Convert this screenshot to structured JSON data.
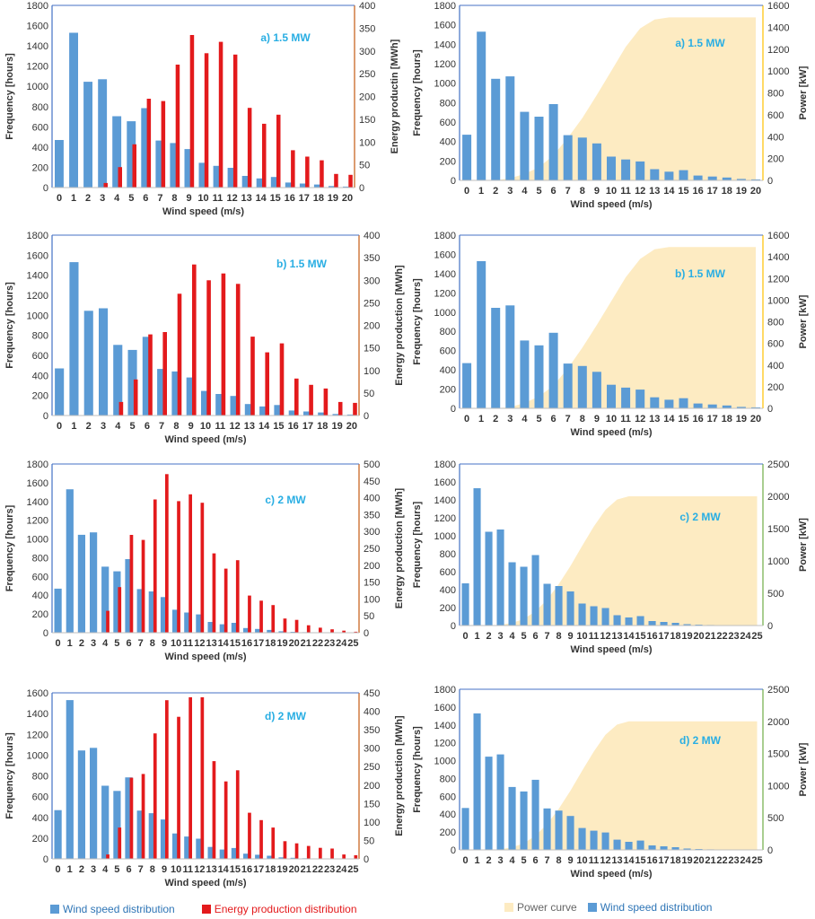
{
  "colors": {
    "wind": "#5b9bd5",
    "energy": "#e31a1c",
    "power": "#fdebc2",
    "axis_left": "#4472c4",
    "axis_energy": "#c55a11",
    "axis_power": "#ffc000",
    "axis_power_green": "#70ad47",
    "annotation": "#29aee3",
    "legend_energy_text": "#e31a1c",
    "legend_wind_text": "#2e75b6"
  },
  "legend_left": {
    "wind": "Wind speed distribution",
    "energy": "Energy production distribution"
  },
  "legend_right": {
    "power": "Power curve",
    "wind": "Wind speed distribution"
  },
  "chart_data": [
    {
      "type": "bar",
      "annotation": "a) 1.5 MW",
      "xlabel": "Wind speed (m/s)",
      "ylabel": "Frequency [hours]",
      "y2label": "Energy productin [MWh]",
      "x": [
        "0",
        "1",
        "2",
        "3",
        "4",
        "5",
        "6",
        "7",
        "8",
        "9",
        "10",
        "11",
        "12",
        "13",
        "14",
        "15",
        "16",
        "17",
        "18",
        "19",
        "20"
      ],
      "ylim": [
        0,
        1800
      ],
      "yticks": [
        0,
        200,
        400,
        600,
        800,
        1000,
        1200,
        1400,
        1600,
        1800
      ],
      "y2lim": [
        0,
        400
      ],
      "y2ticks": [
        0,
        50,
        100,
        150,
        200,
        250,
        300,
        350,
        400
      ],
      "series": [
        {
          "name": "Wind speed distribution",
          "axis": "left",
          "values": [
            470,
            1530,
            1045,
            1070,
            705,
            655,
            785,
            465,
            440,
            380,
            245,
            215,
            195,
            115,
            90,
            105,
            50,
            40,
            30,
            15,
            10
          ]
        },
        {
          "name": "Energy production distribution",
          "axis": "right",
          "values": [
            0,
            0,
            0,
            10,
            45,
            95,
            195,
            190,
            270,
            335,
            295,
            320,
            292,
            175,
            140,
            160,
            82,
            68,
            60,
            30,
            28
          ]
        }
      ]
    },
    {
      "type": "bar",
      "annotation": "a) 1.5 MW",
      "xlabel": "Wind speed (m/s)",
      "ylabel": "Frequency [hours]",
      "y2label": "Power [kW]",
      "x": [
        "0",
        "1",
        "2",
        "3",
        "4",
        "5",
        "6",
        "7",
        "8",
        "9",
        "10",
        "11",
        "12",
        "13",
        "14",
        "15",
        "16",
        "17",
        "18",
        "19",
        "20"
      ],
      "ylim": [
        0,
        1800
      ],
      "yticks": [
        0,
        200,
        400,
        600,
        800,
        1000,
        1200,
        1400,
        1600,
        1800
      ],
      "y2lim": [
        0,
        1600
      ],
      "y2ticks": [
        0,
        200,
        400,
        600,
        800,
        1000,
        1200,
        1400,
        1600
      ],
      "series": [
        {
          "name": "Wind speed distribution",
          "axis": "left",
          "values": [
            470,
            1530,
            1045,
            1070,
            705,
            655,
            785,
            465,
            440,
            380,
            245,
            215,
            195,
            115,
            90,
            105,
            50,
            40,
            30,
            15,
            10
          ]
        },
        {
          "name": "Power curve",
          "axis": "right",
          "area": true,
          "values": [
            0,
            0,
            0,
            20,
            60,
            120,
            230,
            390,
            570,
            780,
            1000,
            1220,
            1390,
            1470,
            1490,
            1490,
            1490,
            1490,
            1490,
            1490,
            1490
          ]
        }
      ]
    },
    {
      "type": "bar",
      "annotation": "b) 1.5 MW",
      "xlabel": "Wind speed (m/s)",
      "ylabel": "Frequency [hours]",
      "y2label": "Energy production [MWh]",
      "x": [
        "0",
        "1",
        "2",
        "3",
        "4",
        "5",
        "6",
        "7",
        "8",
        "9",
        "10",
        "11",
        "12",
        "13",
        "14",
        "15",
        "16",
        "17",
        "18",
        "19",
        "20"
      ],
      "ylim": [
        0,
        1800
      ],
      "yticks": [
        0,
        200,
        400,
        600,
        800,
        1000,
        1200,
        1400,
        1600,
        1800
      ],
      "y2lim": [
        0,
        400
      ],
      "y2ticks": [
        0,
        50,
        100,
        150,
        200,
        250,
        300,
        350,
        400
      ],
      "series": [
        {
          "name": "Wind speed distribution",
          "axis": "left",
          "values": [
            470,
            1530,
            1045,
            1070,
            705,
            655,
            785,
            465,
            440,
            380,
            245,
            215,
            195,
            115,
            90,
            105,
            50,
            40,
            30,
            15,
            10
          ]
        },
        {
          "name": "Energy production distribution",
          "axis": "right",
          "values": [
            0,
            0,
            0,
            0,
            30,
            80,
            180,
            185,
            270,
            335,
            300,
            315,
            292,
            175,
            140,
            160,
            82,
            68,
            60,
            30,
            28
          ]
        }
      ]
    },
    {
      "type": "bar",
      "annotation": "b) 1.5 MW",
      "xlabel": "Wind speed (m/s)",
      "ylabel": "Frequency [hours]",
      "y2label": "Power [kW]",
      "x": [
        "0",
        "1",
        "2",
        "3",
        "4",
        "5",
        "6",
        "7",
        "8",
        "9",
        "10",
        "11",
        "12",
        "13",
        "14",
        "15",
        "16",
        "17",
        "18",
        "19",
        "20"
      ],
      "ylim": [
        0,
        1800
      ],
      "yticks": [
        0,
        200,
        400,
        600,
        800,
        1000,
        1200,
        1400,
        1600,
        1800
      ],
      "y2lim": [
        0,
        1600
      ],
      "y2ticks": [
        0,
        200,
        400,
        600,
        800,
        1000,
        1200,
        1400,
        1600
      ],
      "series": [
        {
          "name": "Wind speed distribution",
          "axis": "left",
          "values": [
            470,
            1530,
            1045,
            1070,
            705,
            655,
            785,
            465,
            440,
            380,
            245,
            215,
            195,
            115,
            90,
            105,
            50,
            40,
            30,
            15,
            10
          ]
        },
        {
          "name": "Power curve",
          "axis": "right",
          "area": true,
          "values": [
            0,
            0,
            0,
            10,
            50,
            110,
            210,
            370,
            560,
            770,
            990,
            1210,
            1380,
            1470,
            1490,
            1490,
            1490,
            1490,
            1490,
            1490,
            1490
          ]
        }
      ]
    },
    {
      "type": "bar",
      "annotation": "c) 2 MW",
      "xlabel": "Wind speed (m/s)",
      "ylabel": "Frequency [hours]",
      "y2label": "Energy production [MWh]",
      "x": [
        "0",
        "1",
        "2",
        "3",
        "4",
        "5",
        "6",
        "7",
        "8",
        "9",
        "10",
        "11",
        "12",
        "13",
        "14",
        "15",
        "16",
        "17",
        "18",
        "19",
        "20",
        "21",
        "22",
        "23",
        "24",
        "25"
      ],
      "ylim": [
        0,
        1800
      ],
      "yticks": [
        0,
        200,
        400,
        600,
        800,
        1000,
        1200,
        1400,
        1600,
        1800
      ],
      "y2lim": [
        0,
        500
      ],
      "y2ticks": [
        0,
        50,
        100,
        150,
        200,
        250,
        300,
        350,
        400,
        450,
        500
      ],
      "series": [
        {
          "name": "Wind speed distribution",
          "axis": "left",
          "values": [
            470,
            1530,
            1045,
            1070,
            705,
            655,
            785,
            465,
            440,
            380,
            245,
            215,
            195,
            115,
            90,
            105,
            50,
            40,
            30,
            15,
            10,
            6,
            4,
            3,
            2,
            1
          ]
        },
        {
          "name": "Energy production distribution",
          "axis": "right",
          "values": [
            0,
            0,
            0,
            0,
            65,
            135,
            290,
            275,
            395,
            470,
            390,
            410,
            385,
            235,
            190,
            215,
            110,
            95,
            82,
            42,
            38,
            22,
            15,
            10,
            6,
            3
          ]
        }
      ]
    },
    {
      "type": "bar",
      "annotation": "c) 2 MW",
      "xlabel": "Wind speed (m/s)",
      "ylabel": "Frequency [hours]",
      "y2label": "Power [kW]",
      "x": [
        "0",
        "1",
        "2",
        "3",
        "4",
        "5",
        "6",
        "7",
        "8",
        "9",
        "10",
        "11",
        "12",
        "13",
        "14",
        "15",
        "16",
        "17",
        "18",
        "19",
        "20",
        "21",
        "22",
        "23",
        "24",
        "25"
      ],
      "ylim": [
        0,
        1800
      ],
      "yticks": [
        0,
        200,
        400,
        600,
        800,
        1000,
        1200,
        1400,
        1600,
        1800
      ],
      "y2lim": [
        0,
        2500
      ],
      "y2ticks": [
        0,
        500,
        1000,
        1500,
        2000,
        2500
      ],
      "series": [
        {
          "name": "Wind speed distribution",
          "axis": "left",
          "values": [
            470,
            1530,
            1045,
            1070,
            705,
            655,
            785,
            465,
            440,
            380,
            245,
            215,
            195,
            115,
            90,
            105,
            50,
            40,
            30,
            15,
            10,
            6,
            4,
            3,
            2,
            1
          ]
        },
        {
          "name": "Power curve",
          "axis": "right",
          "area": true,
          "values": [
            0,
            0,
            0,
            10,
            40,
            100,
            220,
            400,
            640,
            920,
            1230,
            1530,
            1790,
            1950,
            2000,
            2000,
            2000,
            2000,
            2000,
            2000,
            2000,
            2000,
            2000,
            2000,
            2000,
            2000
          ]
        }
      ]
    },
    {
      "type": "bar",
      "annotation": "d) 2 MW",
      "xlabel": "Wind speed (m/s)",
      "ylabel": "Frequency [hours]",
      "y2label": "Energy production [MWh]",
      "x": [
        "0",
        "1",
        "2",
        "3",
        "4",
        "5",
        "6",
        "7",
        "8",
        "9",
        "10",
        "11",
        "12",
        "13",
        "14",
        "15",
        "16",
        "17",
        "18",
        "19",
        "20",
        "21",
        "22",
        "23",
        "24",
        "25"
      ],
      "ylim": [
        0,
        1600
      ],
      "yticks": [
        0,
        200,
        400,
        600,
        800,
        1000,
        1200,
        1400,
        1600
      ],
      "y2lim": [
        0,
        450
      ],
      "y2ticks": [
        0,
        50,
        100,
        150,
        200,
        250,
        300,
        350,
        400,
        450
      ],
      "series": [
        {
          "name": "Wind speed distribution",
          "axis": "left",
          "values": [
            470,
            1530,
            1045,
            1070,
            705,
            655,
            785,
            465,
            440,
            380,
            245,
            215,
            195,
            115,
            90,
            105,
            50,
            40,
            30,
            15,
            10,
            6,
            4,
            3,
            2,
            1
          ]
        },
        {
          "name": "Energy production distribution",
          "axis": "right",
          "values": [
            0,
            0,
            0,
            0,
            12,
            85,
            220,
            230,
            340,
            430,
            385,
            438,
            438,
            265,
            210,
            240,
            125,
            105,
            85,
            48,
            42,
            35,
            30,
            28,
            12,
            10
          ]
        }
      ]
    },
    {
      "type": "bar",
      "annotation": "d) 2 MW",
      "xlabel": "Wind speed (m/s)",
      "ylabel": "Frequency [hours]",
      "y2label": "Power [kW]",
      "x": [
        "0",
        "1",
        "2",
        "3",
        "4",
        "5",
        "6",
        "7",
        "8",
        "9",
        "10",
        "11",
        "12",
        "13",
        "14",
        "15",
        "16",
        "17",
        "18",
        "19",
        "20",
        "21",
        "22",
        "23",
        "24",
        "25"
      ],
      "ylim": [
        0,
        1800
      ],
      "yticks": [
        0,
        200,
        400,
        600,
        800,
        1000,
        1200,
        1400,
        1600,
        1800
      ],
      "y2lim": [
        0,
        2500
      ],
      "y2ticks": [
        0,
        500,
        1000,
        1500,
        2000,
        2500
      ],
      "series": [
        {
          "name": "Wind speed distribution",
          "axis": "left",
          "values": [
            470,
            1530,
            1045,
            1070,
            705,
            655,
            785,
            465,
            440,
            380,
            245,
            215,
            195,
            115,
            90,
            105,
            50,
            40,
            30,
            15,
            10,
            6,
            4,
            3,
            2,
            1
          ]
        },
        {
          "name": "Power curve",
          "axis": "right",
          "area": true,
          "values": [
            0,
            0,
            0,
            10,
            40,
            100,
            220,
            400,
            640,
            920,
            1230,
            1530,
            1790,
            1950,
            2000,
            2000,
            2000,
            2000,
            2000,
            2000,
            2000,
            2000,
            2000,
            2000,
            2000,
            2000
          ]
        }
      ]
    }
  ]
}
